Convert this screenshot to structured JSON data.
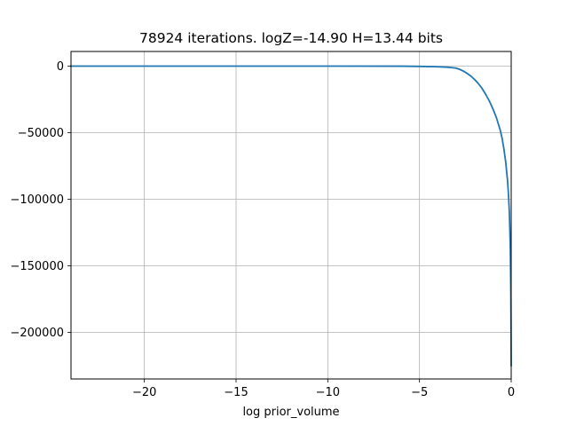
{
  "chart_data": {
    "type": "line",
    "title": "78924 iterations. logZ=-14.90 H=13.44 bits",
    "xlabel": "log prior_volume",
    "ylabel": "",
    "xlim": [
      -24.0,
      0.0
    ],
    "ylim": [
      -235000,
      11000
    ],
    "grid": true,
    "x_ticks": [
      -20,
      -15,
      -10,
      -5,
      0
    ],
    "x_tick_labels": [
      "−20",
      "−15",
      "−10",
      "−5",
      "0"
    ],
    "y_ticks": [
      0,
      -50000,
      -100000,
      -150000,
      -200000
    ],
    "y_tick_labels": [
      "0",
      "−50000",
      "−100000",
      "−150000",
      "−200000"
    ],
    "series": [
      {
        "color": "#1f77b4",
        "x": [
          -24.0,
          -20.0,
          -15.0,
          -10.0,
          -6.0,
          -5.0,
          -4.0,
          -3.5,
          -3.0,
          -2.8,
          -2.6,
          -2.4,
          -2.2,
          -2.0,
          -1.8,
          -1.6,
          -1.4,
          -1.2,
          -1.0,
          -0.8,
          -0.6,
          -0.5,
          -0.4,
          -0.3,
          -0.2,
          -0.15,
          -0.1,
          -0.05,
          -0.02,
          0.0
        ],
        "y": [
          0,
          0,
          0,
          0,
          -50,
          -200,
          -500,
          -800,
          -1500,
          -2500,
          -3800,
          -5500,
          -7500,
          -10000,
          -13000,
          -16500,
          -21000,
          -26000,
          -32000,
          -39000,
          -48000,
          -54000,
          -62000,
          -72000,
          -86000,
          -96000,
          -110000,
          -135000,
          -170000,
          -225000
        ]
      }
    ],
    "colors": {
      "line": "#1f77b4",
      "grid": "#b0b0b0",
      "axes": "#000000"
    }
  }
}
